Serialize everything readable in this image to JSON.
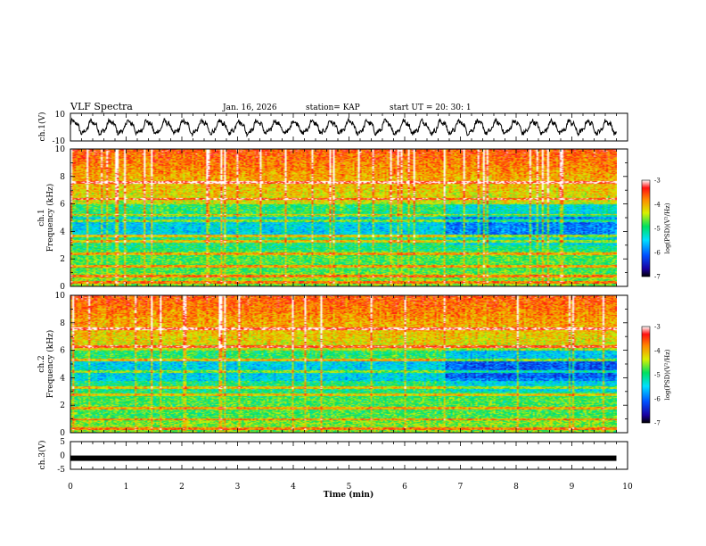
{
  "header": {
    "title": "VLF Spectra",
    "date": "Jan. 16, 2026",
    "station": "station= KAP",
    "start_ut": "start UT =  20: 30: 1"
  },
  "chart_data": [
    {
      "type": "line",
      "name": "ch1-waveform",
      "ylabel": "ch.1(V)",
      "ylim": [
        -10,
        10
      ],
      "yticks": [
        "10",
        "-10"
      ],
      "xlim": [
        0,
        10
      ],
      "series": [
        {
          "name": "ch.1",
          "description_values": "oscillating voltage approx -6 to 6 V with ~0.33 min period",
          "color": "#000000"
        }
      ]
    },
    {
      "type": "heatmap",
      "name": "ch1-spectrogram",
      "ylabel": "ch.1 Frequency (kHz)",
      "ylabel_line1": "ch.1",
      "ylabel_line2": "Frequency (kHz)",
      "ylim": [
        0,
        10
      ],
      "yticks": [
        "0",
        "2",
        "4",
        "6",
        "8",
        "10"
      ],
      "xlim": [
        0,
        10
      ],
      "data_end_min": 9.8,
      "colorbar": {
        "label": "log(PSD)(V²/Hz)",
        "range": [
          -7,
          -3
        ],
        "ticks": [
          "-3",
          "-4",
          "-5",
          "-6",
          "-7"
        ]
      }
    },
    {
      "type": "heatmap",
      "name": "ch2-spectrogram",
      "ylabel": "ch.2 Frequency (kHz)",
      "ylabel_line1": "ch.2",
      "ylabel_line2": "Frequency (kHz)",
      "ylim": [
        0,
        10
      ],
      "yticks": [
        "0",
        "2",
        "4",
        "6",
        "8",
        "10"
      ],
      "xlim": [
        0,
        10
      ],
      "data_end_min": 9.8,
      "colorbar": {
        "label": "log(PSD)(V²/Hz)",
        "range": [
          -7,
          -3
        ],
        "ticks": [
          "-3",
          "-4",
          "-5",
          "-6",
          "-7"
        ]
      }
    },
    {
      "type": "line",
      "name": "ch3-waveform",
      "ylabel": "ch.3(V)",
      "ylim": [
        -5,
        5
      ],
      "yticks": [
        "5",
        "0",
        "-5"
      ],
      "xlim": [
        0,
        10
      ],
      "series": [
        {
          "name": "ch.3",
          "description_values": "constant near -1 V (thick trace)",
          "value": -1,
          "color": "#000000"
        }
      ]
    }
  ],
  "xaxis": {
    "label": "Time (min)",
    "ticks": [
      "0",
      "1",
      "2",
      "3",
      "4",
      "5",
      "6",
      "7",
      "8",
      "9",
      "10"
    ]
  },
  "colors": {
    "ink": "#000000",
    "background": "#ffffff"
  }
}
